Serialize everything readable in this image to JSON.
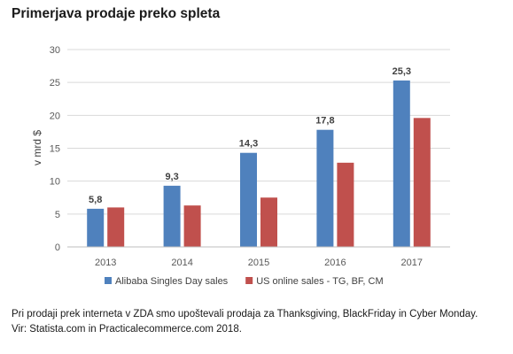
{
  "chart_data": {
    "type": "bar",
    "title": "Primerjava prodaje preko spleta",
    "xlabel": "",
    "ylabel": "v mrd $",
    "categories": [
      "2013",
      "2014",
      "2015",
      "2016",
      "2017"
    ],
    "ylim": [
      0,
      30
    ],
    "yticks": [
      0,
      5,
      10,
      15,
      20,
      25,
      30
    ],
    "grid": true,
    "legend": "bottom",
    "series": [
      {
        "name": "Alibaba Singles Day sales",
        "color": "#4F81BD",
        "values": [
          5.8,
          9.3,
          14.3,
          17.8,
          25.3
        ],
        "labels": [
          "5,8",
          "9,3",
          "14,3",
          "17,8",
          "25,3"
        ]
      },
      {
        "name": "US online sales - TG, BF, CM",
        "color": "#C0504D",
        "values": [
          6.0,
          6.3,
          7.5,
          12.8,
          19.6
        ],
        "labels": []
      }
    ]
  },
  "footnote": {
    "line1": "Pri prodaji prek interneta v ZDA smo upoštevali prodaja za Thanksgiving, BlackFriday in Cyber Monday.",
    "line2": "Vir: Statista.com in Practicalecommerce.com 2018."
  }
}
